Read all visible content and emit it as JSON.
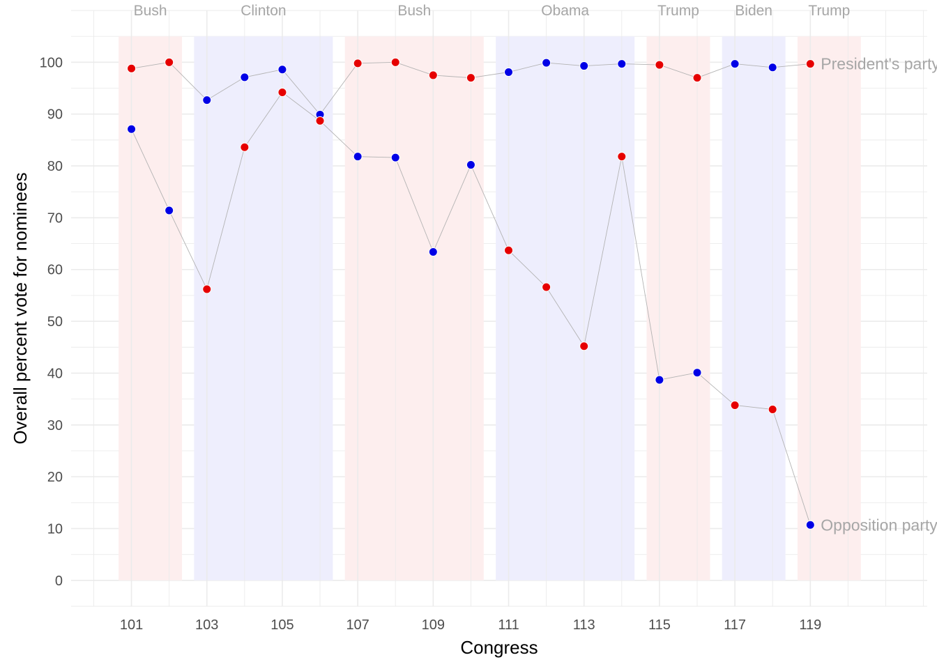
{
  "chart_data": {
    "type": "scatter",
    "xlabel": "Congress",
    "ylabel": "Overall percent vote for nominees",
    "x_ticks": [
      101,
      103,
      105,
      107,
      109,
      111,
      113,
      115,
      117,
      119
    ],
    "y_ticks": [
      0,
      10,
      20,
      30,
      40,
      50,
      60,
      70,
      80,
      90,
      100
    ],
    "xlim": [
      99.4,
      122.1
    ],
    "ylim": [
      -5,
      110
    ],
    "colors": {
      "republican": "#e60000",
      "democrat": "#0000e6",
      "republican_band": "#fdeeee",
      "democrat_band": "#eeeefd",
      "connector": "#b3b3b3",
      "grid": "#ebebeb"
    },
    "administrations": [
      {
        "name": "Bush",
        "party": "R",
        "start": 101,
        "end": 102
      },
      {
        "name": "Clinton",
        "party": "D",
        "start": 103,
        "end": 106
      },
      {
        "name": "Bush",
        "party": "R",
        "start": 107,
        "end": 110
      },
      {
        "name": "Obama",
        "party": "D",
        "start": 111,
        "end": 114
      },
      {
        "name": "Trump",
        "party": "R",
        "start": 115,
        "end": 116
      },
      {
        "name": "Biden",
        "party": "D",
        "start": 117,
        "end": 118
      },
      {
        "name": "Trump",
        "party": "R",
        "start": 119,
        "end": 120
      }
    ],
    "series": [
      {
        "name": "President's party",
        "label": "President's party",
        "points": [
          {
            "x": 101,
            "y": 98.8,
            "party": "R"
          },
          {
            "x": 102,
            "y": 100,
            "party": "R"
          },
          {
            "x": 103,
            "y": 92.7,
            "party": "D"
          },
          {
            "x": 104,
            "y": 97.1,
            "party": "D"
          },
          {
            "x": 105,
            "y": 98.6,
            "party": "D"
          },
          {
            "x": 106,
            "y": 89.9,
            "party": "D"
          },
          {
            "x": 107,
            "y": 99.8,
            "party": "R"
          },
          {
            "x": 108,
            "y": 100,
            "party": "R"
          },
          {
            "x": 109,
            "y": 97.5,
            "party": "R"
          },
          {
            "x": 110,
            "y": 97.0,
            "party": "R"
          },
          {
            "x": 111,
            "y": 98.1,
            "party": "D"
          },
          {
            "x": 112,
            "y": 99.9,
            "party": "D"
          },
          {
            "x": 113,
            "y": 99.3,
            "party": "D"
          },
          {
            "x": 114,
            "y": 99.7,
            "party": "D"
          },
          {
            "x": 115,
            "y": 99.5,
            "party": "R"
          },
          {
            "x": 116,
            "y": 97.0,
            "party": "R"
          },
          {
            "x": 117,
            "y": 99.7,
            "party": "D"
          },
          {
            "x": 118,
            "y": 99.0,
            "party": "D"
          },
          {
            "x": 119,
            "y": 99.7,
            "party": "R"
          }
        ]
      },
      {
        "name": "Opposition party",
        "label": "Opposition party",
        "points": [
          {
            "x": 101,
            "y": 87.1,
            "party": "D"
          },
          {
            "x": 102,
            "y": 71.4,
            "party": "D"
          },
          {
            "x": 103,
            "y": 56.2,
            "party": "R"
          },
          {
            "x": 104,
            "y": 83.6,
            "party": "R"
          },
          {
            "x": 105,
            "y": 94.2,
            "party": "R"
          },
          {
            "x": 106,
            "y": 88.7,
            "party": "R"
          },
          {
            "x": 107,
            "y": 81.8,
            "party": "D"
          },
          {
            "x": 108,
            "y": 81.6,
            "party": "D"
          },
          {
            "x": 109,
            "y": 63.4,
            "party": "D"
          },
          {
            "x": 110,
            "y": 80.2,
            "party": "D"
          },
          {
            "x": 111,
            "y": 63.7,
            "party": "R"
          },
          {
            "x": 112,
            "y": 56.6,
            "party": "R"
          },
          {
            "x": 113,
            "y": 45.2,
            "party": "R"
          },
          {
            "x": 114,
            "y": 81.8,
            "party": "R"
          },
          {
            "x": 115,
            "y": 38.7,
            "party": "D"
          },
          {
            "x": 116,
            "y": 40.1,
            "party": "D"
          },
          {
            "x": 117,
            "y": 33.8,
            "party": "R"
          },
          {
            "x": 118,
            "y": 33.0,
            "party": "R"
          },
          {
            "x": 119,
            "y": 10.7,
            "party": "D"
          }
        ]
      }
    ]
  }
}
